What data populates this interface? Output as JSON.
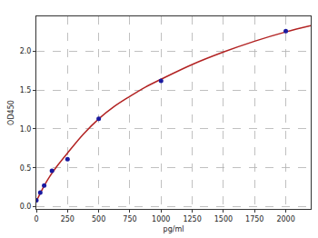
{
  "chart_data": {
    "type": "scatter",
    "x_label": "pg/ml",
    "y_label": "OD450",
    "xlim": [
      0,
      2200
    ],
    "xticks": [
      0,
      250,
      500,
      750,
      1000,
      1250,
      1500,
      1750,
      2000
    ],
    "ylim": [
      -0.03,
      2.45
    ],
    "yticks": [
      {
        "value": 0,
        "label": "0.0"
      },
      0.5,
      {
        "value": 1,
        "label": "1.0"
      },
      1.5,
      {
        "value": 2,
        "label": "2.0"
      }
    ],
    "grid": true,
    "series": [
      {
        "type": "line",
        "color": "#b22222",
        "line_style": "solid",
        "x": [
          0,
          50,
          100,
          175,
          250,
          375,
          500,
          625,
          750,
          875,
          1000,
          1250,
          1500,
          1750,
          2000,
          2200
        ],
        "values": [
          0.07,
          0.23,
          0.37,
          0.54,
          0.69,
          0.93,
          1.13,
          1.29,
          1.42,
          1.54,
          1.64,
          1.83,
          1.99,
          2.13,
          2.25,
          2.33
        ]
      },
      {
        "type": "scatter",
        "color": "#1a1aa0",
        "marker": "circle",
        "x": [
          0,
          31.25,
          62.5,
          125,
          250,
          500,
          1000,
          2000
        ],
        "values": [
          0.08,
          0.18,
          0.27,
          0.46,
          0.61,
          1.13,
          1.62,
          2.26
        ]
      }
    ]
  }
}
